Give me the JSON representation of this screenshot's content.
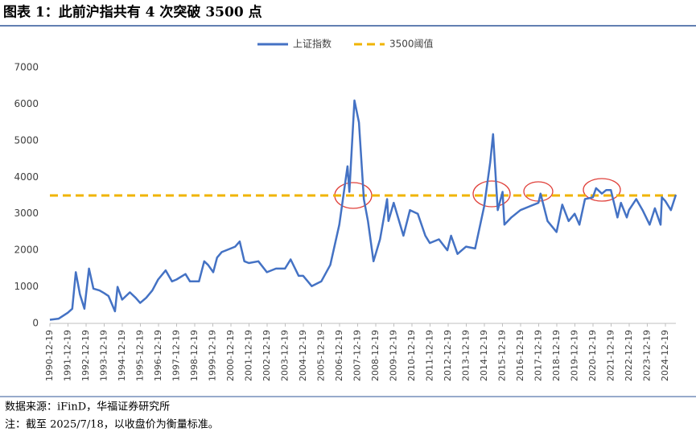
{
  "chart_data": {
    "type": "line",
    "title": "图表 1：此前沪指共有 4 次突破 3500 点",
    "source": "数据来源：iFinD，华福证券研究所",
    "note": "注：截至 2025/7/18，以收盘价为衡量标准。",
    "x": [
      "1990-12-19",
      "1991-06-15",
      "1991-12-15",
      "1992-03-15",
      "1992-05-25",
      "1992-08-15",
      "1992-11-15",
      "1993-02-15",
      "1993-05-15",
      "1993-09-15",
      "1993-12-15",
      "1994-03-15",
      "1994-07-25",
      "1994-09-15",
      "1994-12-15",
      "1995-05-20",
      "1995-09-15",
      "1995-12-15",
      "1996-04-15",
      "1996-08-15",
      "1996-12-10",
      "1997-05-12",
      "1997-09-15",
      "1997-12-15",
      "1998-06-15",
      "1998-09-15",
      "1998-12-15",
      "1999-03-15",
      "1999-06-29",
      "1999-09-15",
      "1999-12-27",
      "2000-03-15",
      "2000-06-15",
      "2000-09-15",
      "2001-03-15",
      "2001-06-14",
      "2001-09-15",
      "2001-12-15",
      "2002-06-25",
      "2002-12-15",
      "2003-06-15",
      "2003-12-15",
      "2004-04-07",
      "2004-09-15",
      "2004-12-15",
      "2005-06-06",
      "2005-12-15",
      "2006-06-15",
      "2006-12-15",
      "2007-05-29",
      "2007-07-05",
      "2007-10-16",
      "2008-01-14",
      "2008-04-22",
      "2008-07-15",
      "2008-11-04",
      "2009-03-15",
      "2009-08-04",
      "2009-09-01",
      "2009-12-15",
      "2010-06-30",
      "2010-11-08",
      "2011-04-15",
      "2011-09-15",
      "2011-12-15",
      "2012-06-15",
      "2012-12-03",
      "2013-02-15",
      "2013-06-25",
      "2013-12-15",
      "2014-06-15",
      "2014-12-15",
      "2015-04-15",
      "2015-06-12",
      "2015-09-15",
      "2015-12-22",
      "2016-01-28",
      "2016-06-15",
      "2016-12-15",
      "2017-06-15",
      "2017-12-15",
      "2018-01-25",
      "2018-06-15",
      "2018-12-15",
      "2019-04-08",
      "2019-08-15",
      "2019-12-15",
      "2020-03-19",
      "2020-07-09",
      "2020-12-15",
      "2021-02-18",
      "2021-06-15",
      "2021-09-13",
      "2021-12-15",
      "2022-04-26",
      "2022-07-05",
      "2022-10-31",
      "2022-12-15",
      "2023-05-09",
      "2023-09-15",
      "2024-02-05",
      "2024-05-20",
      "2024-09-13",
      "2024-10-08",
      "2024-12-15",
      "2025-04-08",
      "2025-07-18"
    ],
    "series": [
      {
        "name": "上证指数",
        "color": "#4472c4",
        "values": [
          100,
          130,
          290,
          400,
          1400,
          800,
          400,
          1500,
          950,
          900,
          830,
          750,
          330,
          1000,
          650,
          850,
          700,
          560,
          700,
          900,
          1200,
          1450,
          1150,
          1200,
          1350,
          1150,
          1150,
          1150,
          1700,
          1600,
          1400,
          1800,
          1950,
          2000,
          2100,
          2240,
          1700,
          1650,
          1700,
          1400,
          1500,
          1500,
          1750,
          1300,
          1300,
          1020,
          1150,
          1600,
          2700,
          4300,
          3600,
          6100,
          5500,
          3400,
          2800,
          1700,
          2300,
          3400,
          2800,
          3300,
          2400,
          3100,
          3000,
          2400,
          2200,
          2300,
          2000,
          2400,
          1900,
          2100,
          2050,
          3200,
          4400,
          5180,
          3100,
          3600,
          2700,
          2900,
          3100,
          3200,
          3300,
          3550,
          2800,
          2500,
          3250,
          2800,
          3000,
          2700,
          3400,
          3450,
          3700,
          3550,
          3650,
          3650,
          2900,
          3300,
          2900,
          3100,
          3400,
          3100,
          2700,
          3150,
          2700,
          3450,
          3350,
          3100,
          3520
        ]
      }
    ],
    "threshold": {
      "name": "3500阈值",
      "value": 3500,
      "color": "#f0b400"
    },
    "xlim": [
      "1990-12-19",
      "2025-07-18"
    ],
    "xticks": [
      "1990-12-19",
      "1991-12-19",
      "1992-12-19",
      "1993-12-19",
      "1994-12-19",
      "1995-12-19",
      "1996-12-19",
      "1997-12-19",
      "1998-12-19",
      "1999-12-19",
      "2000-12-19",
      "2001-12-19",
      "2002-12-19",
      "2003-12-19",
      "2004-12-19",
      "2005-12-19",
      "2006-12-19",
      "2007-12-19",
      "2008-12-19",
      "2009-12-19",
      "2010-12-19",
      "2011-12-19",
      "2012-12-19",
      "2013-12-19",
      "2014-12-19",
      "2015-12-19",
      "2016-12-19",
      "2017-12-19",
      "2018-12-19",
      "2019-12-19",
      "2020-12-19",
      "2021-12-19",
      "2022-12-19",
      "2023-12-19",
      "2024-12-19"
    ],
    "ylim": [
      0,
      7000
    ],
    "yticks": [
      0,
      1000,
      2000,
      3000,
      4000,
      5000,
      6000,
      7000
    ],
    "grid": false
  }
}
